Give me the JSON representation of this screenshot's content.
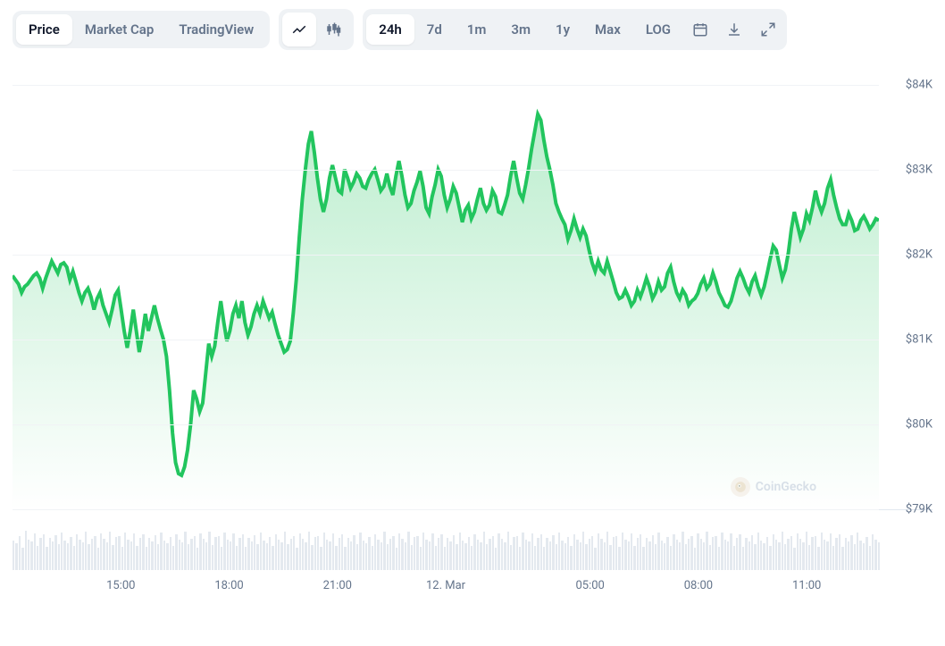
{
  "tabs_view": {
    "items": [
      "Price",
      "Market Cap",
      "TradingView"
    ],
    "active_index": 0
  },
  "chart_type": {
    "items": [
      "line",
      "candlestick"
    ],
    "active_index": 0
  },
  "range": {
    "items": [
      "24h",
      "7d",
      "1m",
      "3m",
      "1y",
      "Max",
      "LOG"
    ],
    "active_index": 0
  },
  "action_icons": [
    "calendar",
    "download",
    "fullscreen"
  ],
  "watermark": {
    "label": "CoinGecko"
  },
  "chart": {
    "type": "area",
    "line_color": "#22c55e",
    "line_width": 2,
    "area_gradient_top": "rgba(34,197,94,0.30)",
    "area_gradient_bottom": "rgba(34,197,94,0.00)",
    "background_color": "#ffffff",
    "grid_color": "#f1f3f6",
    "axis_label_color": "#64748b",
    "axis_label_fontsize": 13,
    "ylim": [
      79,
      84.3
    ],
    "yticks": [
      79,
      80,
      81,
      82,
      83,
      84
    ],
    "ylabels": [
      "$79K",
      "$80K",
      "$81K",
      "$82K",
      "$83K",
      "$84K"
    ],
    "xlim": [
      0,
      288
    ],
    "xticks": [
      36,
      72,
      108,
      144,
      192,
      228,
      264
    ],
    "xlabels": [
      "15:00",
      "18:00",
      "21:00",
      "12. Mar",
      "05:00",
      "08:00",
      "11:00"
    ],
    "values": [
      81.75,
      81.7,
      81.65,
      81.55,
      81.62,
      81.65,
      81.7,
      81.75,
      81.78,
      81.72,
      81.6,
      81.72,
      81.82,
      81.92,
      81.85,
      81.78,
      81.88,
      81.9,
      81.85,
      81.7,
      81.8,
      81.68,
      81.55,
      81.45,
      81.55,
      81.6,
      81.5,
      81.35,
      81.48,
      81.55,
      81.4,
      81.3,
      81.2,
      81.35,
      81.52,
      81.58,
      81.35,
      81.1,
      80.9,
      81.1,
      81.35,
      81.1,
      80.85,
      81.05,
      81.3,
      81.1,
      81.25,
      81.4,
      81.25,
      81.12,
      81.0,
      80.8,
      80.4,
      79.9,
      79.55,
      79.42,
      79.4,
      79.5,
      79.7,
      80.0,
      80.4,
      80.3,
      80.15,
      80.25,
      80.6,
      80.95,
      80.8,
      80.92,
      81.2,
      81.45,
      81.2,
      80.98,
      81.1,
      81.3,
      81.4,
      81.25,
      81.45,
      81.2,
      81.05,
      81.15,
      81.3,
      81.4,
      81.3,
      81.45,
      81.35,
      81.25,
      81.32,
      81.18,
      81.05,
      80.95,
      80.85,
      80.88,
      80.98,
      81.3,
      81.7,
      82.2,
      82.65,
      83.0,
      83.3,
      83.45,
      83.2,
      82.9,
      82.65,
      82.5,
      82.65,
      82.9,
      83.05,
      82.9,
      82.75,
      82.72,
      83.0,
      82.9,
      82.78,
      82.85,
      82.95,
      82.9,
      82.8,
      82.78,
      82.88,
      82.95,
      83.0,
      82.88,
      82.75,
      82.8,
      82.95,
      82.8,
      82.7,
      82.92,
      83.1,
      82.92,
      82.7,
      82.55,
      82.6,
      82.75,
      82.85,
      82.98,
      82.8,
      82.55,
      82.48,
      82.68,
      82.82,
      83.0,
      82.92,
      82.7,
      82.55,
      82.65,
      82.8,
      82.72,
      82.55,
      82.38,
      82.52,
      82.58,
      82.42,
      82.5,
      82.65,
      82.78,
      82.6,
      82.52,
      82.58,
      82.75,
      82.68,
      82.5,
      82.48,
      82.58,
      82.7,
      82.92,
      83.1,
      82.9,
      82.72,
      82.65,
      82.82,
      83.02,
      83.25,
      83.45,
      83.65,
      83.58,
      83.35,
      83.15,
      83.0,
      82.82,
      82.6,
      82.5,
      82.42,
      82.35,
      82.18,
      82.28,
      82.42,
      82.3,
      82.2,
      82.3,
      82.22,
      82.05,
      81.9,
      81.8,
      81.92,
      81.82,
      81.78,
      81.92,
      81.8,
      81.68,
      81.55,
      81.48,
      81.5,
      81.58,
      81.5,
      81.4,
      81.45,
      81.58,
      81.5,
      81.6,
      81.72,
      81.62,
      81.48,
      81.55,
      81.68,
      81.58,
      81.62,
      81.78,
      81.85,
      81.68,
      81.55,
      81.48,
      81.58,
      81.52,
      81.4,
      81.45,
      81.48,
      81.54,
      81.65,
      81.72,
      81.6,
      81.65,
      81.78,
      81.68,
      81.55,
      81.48,
      81.4,
      81.38,
      81.45,
      81.58,
      81.72,
      81.8,
      81.72,
      81.62,
      81.55,
      81.68,
      81.75,
      81.62,
      81.52,
      81.62,
      81.78,
      81.95,
      82.1,
      82.05,
      81.88,
      81.72,
      81.82,
      82.02,
      82.3,
      82.5,
      82.35,
      82.2,
      82.3,
      82.48,
      82.4,
      82.55,
      82.75,
      82.6,
      82.5,
      82.6,
      82.78,
      82.88,
      82.7,
      82.55,
      82.42,
      82.35,
      82.35,
      82.48,
      82.4,
      82.28,
      82.3,
      82.4,
      82.45,
      82.38,
      82.3,
      82.35,
      82.42,
      82.4
    ],
    "volume_heights_pct": [
      60,
      55,
      70,
      45,
      80,
      62,
      58,
      75,
      50,
      65,
      72,
      48,
      66,
      59,
      71,
      53,
      77,
      60,
      55,
      68,
      49,
      73,
      61,
      57,
      79,
      52,
      64,
      70,
      46,
      74,
      63,
      56,
      78,
      51,
      67,
      69,
      47,
      76,
      62,
      58,
      75,
      50,
      65,
      72,
      48,
      66,
      59,
      71,
      53,
      77,
      60,
      55,
      68,
      49,
      73,
      61,
      57,
      79,
      52,
      64,
      70,
      46,
      74,
      63,
      56,
      78,
      51,
      67,
      69,
      47,
      76,
      62,
      58,
      75,
      50,
      65,
      72,
      48,
      66,
      59,
      71,
      53,
      77,
      60,
      55,
      68,
      49,
      73,
      61,
      57,
      79,
      52,
      64,
      70,
      46,
      74,
      63,
      56,
      78,
      51,
      67,
      69,
      47,
      76,
      62,
      58,
      75,
      50,
      65,
      72,
      48,
      66,
      59,
      71,
      53,
      77,
      60,
      55,
      68,
      49,
      73,
      61,
      57,
      79,
      52,
      64,
      70,
      46,
      74,
      63,
      56,
      78,
      51,
      67,
      69,
      47,
      76,
      62,
      58,
      75,
      50,
      65,
      72,
      48,
      66,
      59,
      71,
      53,
      77,
      60,
      55,
      68,
      49,
      73,
      61,
      57,
      79,
      52,
      64,
      70,
      46,
      74,
      63,
      56,
      78,
      51,
      67,
      69,
      47,
      76,
      62,
      58,
      75,
      50,
      65,
      72,
      48,
      66,
      59,
      71,
      53,
      77,
      60,
      55,
      68,
      49,
      73,
      61,
      57,
      79,
      52,
      64,
      70,
      46,
      74,
      63,
      56,
      78,
      51,
      67,
      69,
      47,
      76,
      62,
      58,
      75,
      50,
      65,
      72,
      48,
      66,
      59,
      71,
      53,
      77,
      60,
      55,
      68,
      49,
      73,
      61,
      57,
      79,
      52,
      64,
      70,
      46,
      74,
      63,
      56,
      78,
      51,
      67,
      69,
      47,
      76,
      62,
      58,
      75,
      50,
      65,
      72,
      48,
      66,
      59,
      71,
      53,
      77,
      60,
      55,
      68,
      49,
      73,
      61,
      57,
      79,
      52,
      64,
      70,
      46,
      74,
      63,
      56,
      78,
      51,
      67,
      69,
      47,
      76,
      62,
      58,
      75,
      50,
      65,
      72,
      48,
      66,
      59,
      71,
      53,
      77,
      60,
      55,
      68,
      49,
      73,
      61,
      57
    ]
  }
}
